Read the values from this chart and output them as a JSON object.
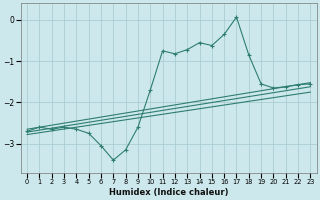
{
  "xlabel": "Humidex (Indice chaleur)",
  "ylabel": "",
  "bg_color": "#cce8ec",
  "grid_color": "#aacdd4",
  "line_color": "#2e7d70",
  "xlim": [
    -0.5,
    23.5
  ],
  "ylim": [
    -3.7,
    0.4
  ],
  "yticks": [
    0,
    -1,
    -2,
    -3
  ],
  "xticks": [
    0,
    1,
    2,
    3,
    4,
    5,
    6,
    7,
    8,
    9,
    10,
    11,
    12,
    13,
    14,
    15,
    16,
    17,
    18,
    19,
    20,
    21,
    22,
    23
  ],
  "main_x": [
    0,
    1,
    2,
    3,
    4,
    5,
    6,
    7,
    8,
    9,
    10,
    11,
    12,
    13,
    14,
    15,
    16,
    17,
    18,
    19,
    20,
    21,
    22,
    23
  ],
  "main_y": [
    -2.7,
    -2.6,
    -2.65,
    -2.6,
    -2.65,
    -2.75,
    -3.05,
    -3.4,
    -3.15,
    -2.6,
    -1.7,
    -0.75,
    -0.82,
    -0.72,
    -0.55,
    -0.62,
    -0.35,
    0.07,
    -0.85,
    -1.55,
    -1.65,
    -1.62,
    -1.57,
    -1.55
  ],
  "trend1_x": [
    0,
    23
  ],
  "trend1_y": [
    -2.65,
    -1.52
  ],
  "trend2_x": [
    0,
    23
  ],
  "trend2_y": [
    -2.72,
    -1.62
  ],
  "trend3_x": [
    0,
    23
  ],
  "trend3_y": [
    -2.78,
    -1.75
  ]
}
